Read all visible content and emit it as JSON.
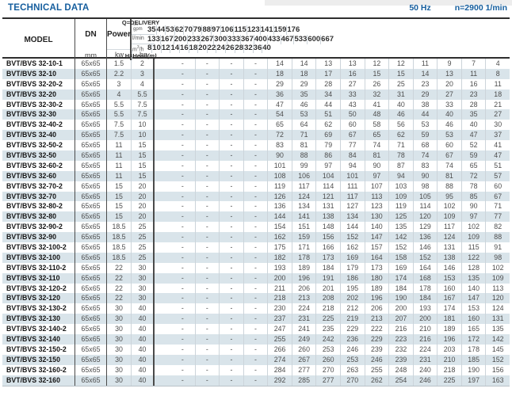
{
  "page": {
    "title": "TECHNICAL DATA",
    "frequency": "50 Hz",
    "speed": "n=2900 1/min"
  },
  "colors": {
    "accent_blue": "#155e9e",
    "row_stripe": "#d9e4ea"
  },
  "table": {
    "headers": {
      "model": "MODEL",
      "dn": "DN",
      "dn_unit": "mm",
      "power": "Power",
      "power_kw": "kw",
      "power_hp": "hp",
      "delivery_label": "Q=DELIVERY",
      "head_label_main": "H=Head",
      "head_label_unit": "(m)",
      "unit_gpm_top": "us",
      "unit_gpm_bottom": "gpm",
      "unit_lmin": "l/min",
      "unit_m3h_base": "m",
      "unit_m3h_sup": "3",
      "unit_m3h_tail": "/h",
      "gpm": [
        "35",
        "44",
        "53",
        "62",
        "70",
        "79",
        "88",
        "97",
        "106",
        "115",
        "123",
        "141",
        "159",
        "176"
      ],
      "lmin": [
        "133",
        "167",
        "200",
        "233",
        "267",
        "300",
        "333",
        "367",
        "400",
        "433",
        "467",
        "533",
        "600",
        "667"
      ],
      "m3h": [
        "8",
        "10",
        "12",
        "14",
        "16",
        "18",
        "20",
        "22",
        "24",
        "26",
        "28",
        "32",
        "36",
        "40"
      ]
    },
    "rows": [
      {
        "model": "BVT/BVS 32-10-1",
        "dn": "65x65",
        "kw": "1.5",
        "hp": "2",
        "heads": [
          "-",
          "-",
          "-",
          "-",
          "14",
          "14",
          "13",
          "13",
          "12",
          "12",
          "11",
          "9",
          "7",
          "4"
        ]
      },
      {
        "model": "BVT/BVS 32-10",
        "dn": "65x65",
        "kw": "2.2",
        "hp": "3",
        "heads": [
          "-",
          "-",
          "-",
          "-",
          "18",
          "18",
          "17",
          "16",
          "15",
          "15",
          "14",
          "13",
          "11",
          "8"
        ]
      },
      {
        "model": "BVT/BVS 32-20-2",
        "dn": "65x65",
        "kw": "3",
        "hp": "4",
        "heads": [
          "-",
          "-",
          "-",
          "-",
          "29",
          "29",
          "28",
          "27",
          "26",
          "25",
          "23",
          "20",
          "16",
          "11"
        ]
      },
      {
        "model": "BVT/BVS 32-20",
        "dn": "65x65",
        "kw": "4",
        "hp": "5.5",
        "heads": [
          "-",
          "-",
          "-",
          "-",
          "36",
          "35",
          "34",
          "33",
          "32",
          "31",
          "29",
          "27",
          "23",
          "18"
        ]
      },
      {
        "model": "BVT/BVS 32-30-2",
        "dn": "65x65",
        "kw": "5.5",
        "hp": "7.5",
        "heads": [
          "-",
          "-",
          "-",
          "-",
          "47",
          "46",
          "44",
          "43",
          "41",
          "40",
          "38",
          "33",
          "28",
          "21"
        ]
      },
      {
        "model": "BVT/BVS 32-30",
        "dn": "65x65",
        "kw": "5.5",
        "hp": "7.5",
        "heads": [
          "-",
          "-",
          "-",
          "-",
          "54",
          "53",
          "51",
          "50",
          "48",
          "46",
          "44",
          "40",
          "35",
          "27"
        ]
      },
      {
        "model": "BVT/BVS 32-40-2",
        "dn": "65x65",
        "kw": "7.5",
        "hp": "10",
        "heads": [
          "-",
          "-",
          "-",
          "-",
          "65",
          "64",
          "62",
          "60",
          "58",
          "56",
          "53",
          "46",
          "40",
          "30"
        ]
      },
      {
        "model": "BVT/BVS 32-40",
        "dn": "65x65",
        "kw": "7.5",
        "hp": "10",
        "heads": [
          "-",
          "-",
          "-",
          "-",
          "72",
          "71",
          "69",
          "67",
          "65",
          "62",
          "59",
          "53",
          "47",
          "37"
        ]
      },
      {
        "model": "BVT/BVS 32-50-2",
        "dn": "65x65",
        "kw": "11",
        "hp": "15",
        "heads": [
          "-",
          "-",
          "-",
          "-",
          "83",
          "81",
          "79",
          "77",
          "74",
          "71",
          "68",
          "60",
          "52",
          "41"
        ]
      },
      {
        "model": "BVT/BVS 32-50",
        "dn": "65x65",
        "kw": "11",
        "hp": "15",
        "heads": [
          "-",
          "-",
          "-",
          "-",
          "90",
          "88",
          "86",
          "84",
          "81",
          "78",
          "74",
          "67",
          "59",
          "47"
        ]
      },
      {
        "model": "BVT/BVS 32-60-2",
        "dn": "65x65",
        "kw": "11",
        "hp": "15",
        "heads": [
          "-",
          "-",
          "-",
          "-",
          "101",
          "99",
          "97",
          "94",
          "90",
          "87",
          "83",
          "74",
          "65",
          "51"
        ]
      },
      {
        "model": "BVT/BVS 32-60",
        "dn": "65x65",
        "kw": "11",
        "hp": "15",
        "heads": [
          "-",
          "-",
          "-",
          "-",
          "108",
          "106",
          "104",
          "101",
          "97",
          "94",
          "90",
          "81",
          "72",
          "57"
        ]
      },
      {
        "model": "BVT/BVS 32-70-2",
        "dn": "65x65",
        "kw": "15",
        "hp": "20",
        "heads": [
          "-",
          "-",
          "-",
          "-",
          "119",
          "117",
          "114",
          "111",
          "107",
          "103",
          "98",
          "88",
          "78",
          "60"
        ]
      },
      {
        "model": "BVT/BVS 32-70",
        "dn": "65x65",
        "kw": "15",
        "hp": "20",
        "heads": [
          "-",
          "-",
          "-",
          "-",
          "126",
          "124",
          "121",
          "117",
          "113",
          "109",
          "105",
          "95",
          "85",
          "67"
        ]
      },
      {
        "model": "BVT/BVS 32-80-2",
        "dn": "65x65",
        "kw": "15",
        "hp": "20",
        "heads": [
          "-",
          "-",
          "-",
          "-",
          "136",
          "134",
          "131",
          "127",
          "123",
          "119",
          "114",
          "102",
          "90",
          "71"
        ]
      },
      {
        "model": "BVT/BVS 32-80",
        "dn": "65x65",
        "kw": "15",
        "hp": "20",
        "heads": [
          "-",
          "-",
          "-",
          "-",
          "144",
          "141",
          "138",
          "134",
          "130",
          "125",
          "120",
          "109",
          "97",
          "77"
        ]
      },
      {
        "model": "BVT/BVS 32-90-2",
        "dn": "65x65",
        "kw": "18.5",
        "hp": "25",
        "heads": [
          "-",
          "-",
          "-",
          "-",
          "154",
          "151",
          "148",
          "144",
          "140",
          "135",
          "129",
          "117",
          "102",
          "82"
        ]
      },
      {
        "model": "BVT/BVS 32-90",
        "dn": "65x65",
        "kw": "18.5",
        "hp": "25",
        "heads": [
          "-",
          "-",
          "-",
          "-",
          "162",
          "159",
          "156",
          "152",
          "147",
          "142",
          "136",
          "124",
          "109",
          "88"
        ]
      },
      {
        "model": "BVT/BVS 32-100-2",
        "dn": "65x65",
        "kw": "18.5",
        "hp": "25",
        "heads": [
          "-",
          "-",
          "-",
          "-",
          "175",
          "171",
          "166",
          "162",
          "157",
          "152",
          "146",
          "131",
          "115",
          "91"
        ]
      },
      {
        "model": "BVT/BVS 32-100",
        "dn": "65x65",
        "kw": "18.5",
        "hp": "25",
        "heads": [
          "-",
          "-",
          "-",
          "-",
          "182",
          "178",
          "173",
          "169",
          "164",
          "158",
          "152",
          "138",
          "122",
          "98"
        ]
      },
      {
        "model": "BVT/BVS 32-110-2",
        "dn": "65x65",
        "kw": "22",
        "hp": "30",
        "heads": [
          "-",
          "-",
          "-",
          "-",
          "193",
          "189",
          "184",
          "179",
          "173",
          "169",
          "164",
          "146",
          "128",
          "102"
        ]
      },
      {
        "model": "BVT/BVS 32-110",
        "dn": "65x65",
        "kw": "22",
        "hp": "30",
        "heads": [
          "-",
          "-",
          "-",
          "-",
          "200",
          "196",
          "191",
          "186",
          "180",
          "174",
          "168",
          "153",
          "135",
          "109"
        ]
      },
      {
        "model": "BVT/BVS 32-120-2",
        "dn": "65x65",
        "kw": "22",
        "hp": "30",
        "heads": [
          "-",
          "-",
          "-",
          "-",
          "211",
          "206",
          "201",
          "195",
          "189",
          "184",
          "178",
          "160",
          "140",
          "113"
        ]
      },
      {
        "model": "BVT/BVS 32-120",
        "dn": "65x65",
        "kw": "22",
        "hp": "30",
        "heads": [
          "-",
          "-",
          "-",
          "-",
          "218",
          "213",
          "208",
          "202",
          "196",
          "190",
          "184",
          "167",
          "147",
          "120"
        ]
      },
      {
        "model": "BVT/BVS 32-130-2",
        "dn": "65x65",
        "kw": "30",
        "hp": "40",
        "heads": [
          "-",
          "-",
          "-",
          "-",
          "230",
          "224",
          "218",
          "212",
          "206",
          "200",
          "193",
          "174",
          "153",
          "124"
        ]
      },
      {
        "model": "BVT/BVS 32-130",
        "dn": "65x65",
        "kw": "30",
        "hp": "40",
        "heads": [
          "-",
          "-",
          "-",
          "-",
          "237",
          "231",
          "225",
          "219",
          "213",
          "207",
          "200",
          "181",
          "160",
          "131"
        ]
      },
      {
        "model": "BVT/BVS 32-140-2",
        "dn": "65x65",
        "kw": "30",
        "hp": "40",
        "heads": [
          "-",
          "-",
          "-",
          "-",
          "247",
          "241",
          "235",
          "229",
          "222",
          "216",
          "210",
          "189",
          "165",
          "135"
        ]
      },
      {
        "model": "BVT/BVS 32-140",
        "dn": "65x65",
        "kw": "30",
        "hp": "40",
        "heads": [
          "-",
          "-",
          "-",
          "-",
          "255",
          "249",
          "242",
          "236",
          "229",
          "223",
          "216",
          "196",
          "172",
          "142"
        ]
      },
      {
        "model": "BVT/BVS 32-150-2",
        "dn": "65x65",
        "kw": "30",
        "hp": "40",
        "heads": [
          "-",
          "-",
          "-",
          "-",
          "266",
          "260",
          "253",
          "246",
          "239",
          "232",
          "224",
          "203",
          "178",
          "145"
        ]
      },
      {
        "model": "BVT/BVS 32-150",
        "dn": "65x65",
        "kw": "30",
        "hp": "40",
        "heads": [
          "-",
          "-",
          "-",
          "-",
          "274",
          "267",
          "260",
          "253",
          "246",
          "239",
          "231",
          "210",
          "185",
          "152"
        ]
      },
      {
        "model": "BVT/BVS 32-160-2",
        "dn": "65x65",
        "kw": "30",
        "hp": "40",
        "heads": [
          "-",
          "-",
          "-",
          "-",
          "284",
          "277",
          "270",
          "263",
          "255",
          "248",
          "240",
          "218",
          "190",
          "156"
        ]
      },
      {
        "model": "BVT/BVS 32-160",
        "dn": "65x65",
        "kw": "30",
        "hp": "40",
        "heads": [
          "-",
          "-",
          "-",
          "-",
          "292",
          "285",
          "277",
          "270",
          "262",
          "254",
          "246",
          "225",
          "197",
          "163"
        ]
      }
    ]
  }
}
